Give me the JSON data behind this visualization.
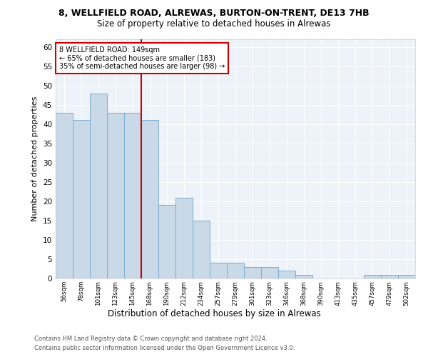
{
  "title1": "8, WELLFIELD ROAD, ALREWAS, BURTON-ON-TRENT, DE13 7HB",
  "title2": "Size of property relative to detached houses in Alrewas",
  "xlabel": "Distribution of detached houses by size in Alrewas",
  "ylabel": "Number of detached properties",
  "categories": [
    "56sqm",
    "78sqm",
    "101sqm",
    "123sqm",
    "145sqm",
    "168sqm",
    "190sqm",
    "212sqm",
    "234sqm",
    "257sqm",
    "279sqm",
    "301sqm",
    "323sqm",
    "346sqm",
    "368sqm",
    "390sqm",
    "413sqm",
    "435sqm",
    "457sqm",
    "479sqm",
    "502sqm"
  ],
  "values": [
    43,
    41,
    48,
    43,
    43,
    41,
    19,
    21,
    15,
    4,
    4,
    3,
    3,
    2,
    1,
    0,
    0,
    0,
    1,
    1,
    1
  ],
  "bar_color": "#c9d9e8",
  "bar_edge_color": "#7aaed0",
  "vline_index": 4,
  "vline_color": "#cc0000",
  "annotation_line1": "8 WELLFIELD ROAD: 149sqm",
  "annotation_line2": "← 65% of detached houses are smaller (183)",
  "annotation_line3": "35% of semi-detached houses are larger (98) →",
  "annotation_box_color": "#cc0000",
  "ylim": [
    0,
    62
  ],
  "yticks": [
    0,
    5,
    10,
    15,
    20,
    25,
    30,
    35,
    40,
    45,
    50,
    55,
    60
  ],
  "footer1": "Contains HM Land Registry data © Crown copyright and database right 2024.",
  "footer2": "Contains public sector information licensed under the Open Government Licence v3.0.",
  "plot_bg_color": "#eef2f9"
}
